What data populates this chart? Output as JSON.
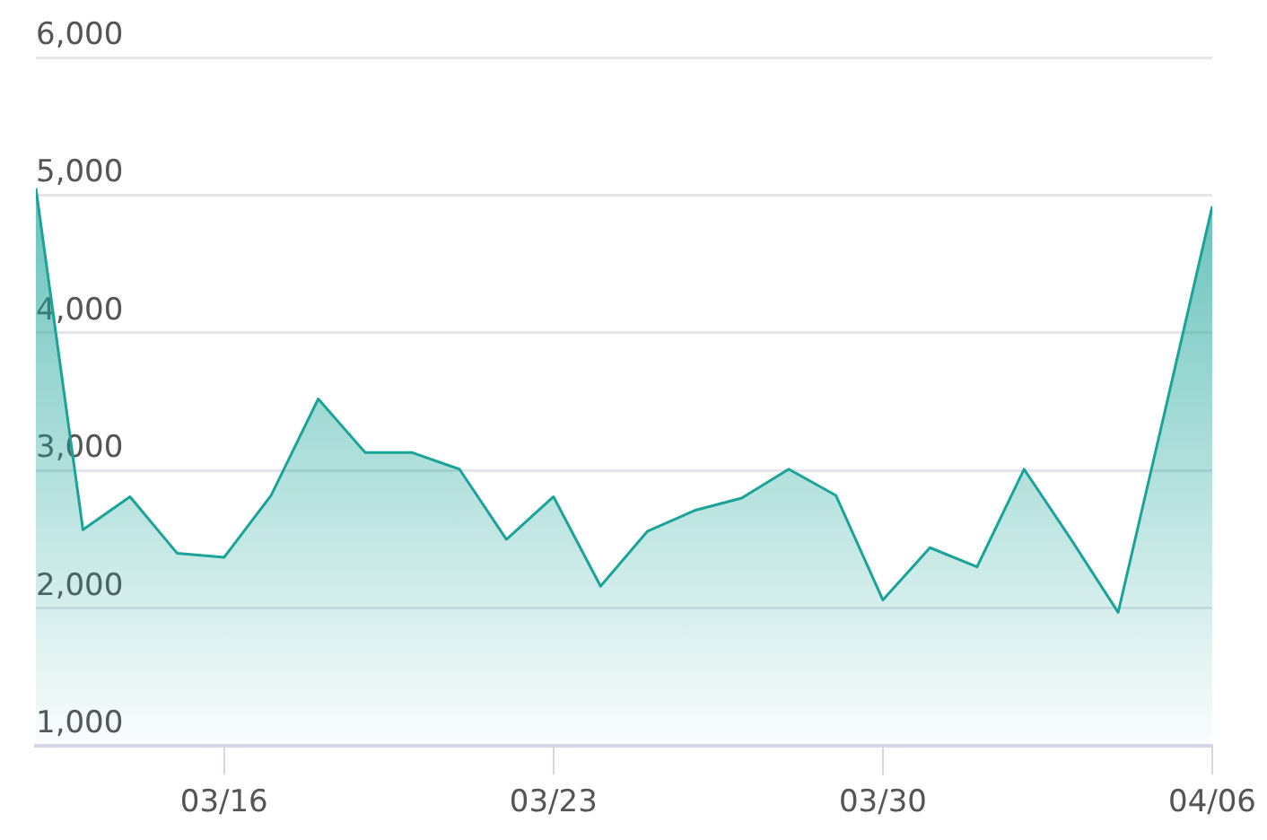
{
  "chart_data": {
    "type": "area",
    "x": [
      "--03-12",
      "--03-13",
      "--03-14",
      "--03-15",
      "--03-16",
      "--03-17",
      "--03-18",
      "--03-19",
      "--03-20",
      "--03-21",
      "--03-22",
      "--03-23",
      "--03-24",
      "--03-25",
      "--03-26",
      "--03-27",
      "--03-28",
      "--03-29",
      "--03-30",
      "--03-31",
      "--04-01",
      "--04-02",
      "--04-03",
      "--04-04",
      "--04-05",
      "--04-06"
    ],
    "series": [
      {
        "color": "#1aa398",
        "values": [
          5050,
          2570,
          2810,
          2400,
          2370,
          2820,
          3520,
          3130,
          3130,
          3010,
          2500,
          2810,
          2160,
          2560,
          2710,
          2800,
          3010,
          2820,
          2060,
          2440,
          2300,
          3010,
          2500,
          1970,
          3440,
          4920
        ]
      }
    ],
    "xlim": [
      "--03-12",
      "--04-06"
    ],
    "xticks": [
      {
        "value": "--03-16",
        "label": "03/16"
      },
      {
        "value": "--03-23",
        "label": "03/23"
      },
      {
        "value": "--03-30",
        "label": "03/30"
      },
      {
        "value": "--04-06",
        "label": "04/06"
      }
    ],
    "ylim": [
      1000,
      6000
    ],
    "yticks": [
      {
        "value": 1000,
        "label": "1,000"
      },
      {
        "value": 2000,
        "label": "2,000"
      },
      {
        "value": 3000,
        "label": "3,000"
      },
      {
        "value": 4000,
        "label": "4,000"
      },
      {
        "value": 5000,
        "label": "5,000"
      },
      {
        "value": 6000,
        "label": "6,000"
      }
    ],
    "grid": "y",
    "marker": "none",
    "line_style": "solid"
  }
}
